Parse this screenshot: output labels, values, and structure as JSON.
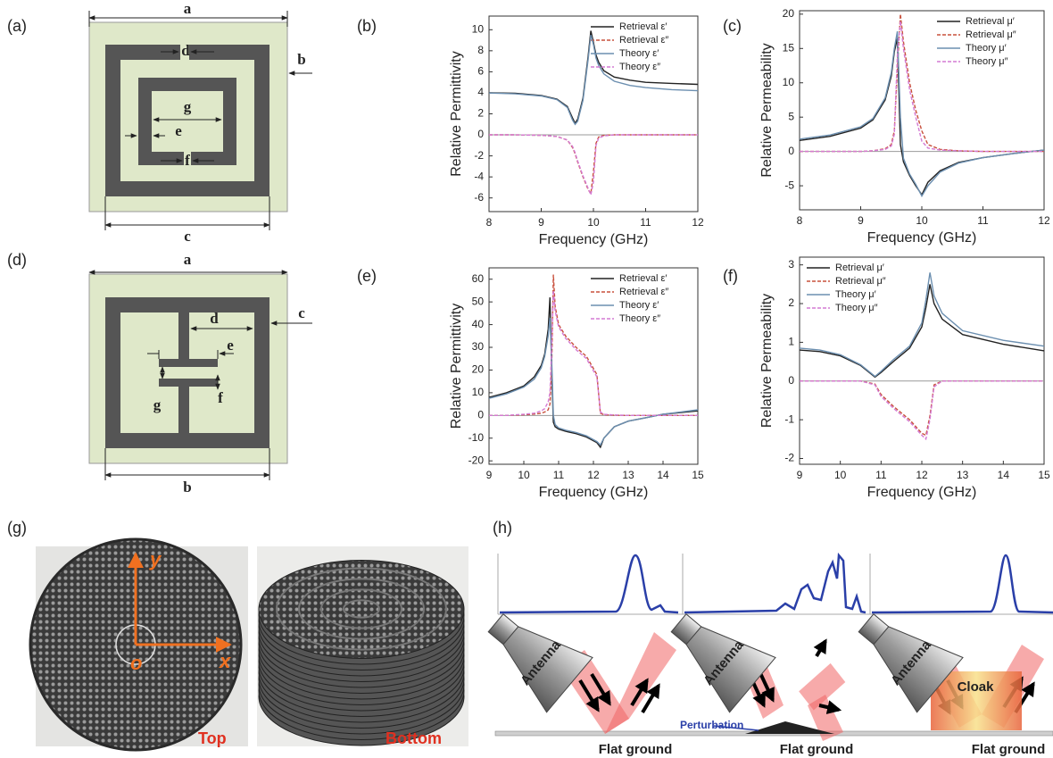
{
  "panel_labels": [
    "(a)",
    "(b)",
    "(c)",
    "(d)",
    "(e)",
    "(f)",
    "(g)",
    "(h)"
  ],
  "diagram_a": {
    "labels": [
      "a",
      "b",
      "c",
      "d",
      "e",
      "f",
      "g"
    ]
  },
  "diagram_d": {
    "labels": [
      "a",
      "b",
      "c",
      "d",
      "e",
      "f",
      "g"
    ]
  },
  "chart_data": [
    {
      "type": "line",
      "xlabel": "Frequency (GHz)",
      "ylabel": "Relative Permittivity",
      "legend": "upper right",
      "x": [
        8,
        8.5,
        9,
        9.3,
        9.5,
        9.6,
        9.65,
        9.7,
        9.8,
        9.9,
        9.95,
        10,
        10.05,
        10.1,
        10.2,
        10.4,
        10.7,
        11,
        11.5,
        12
      ],
      "xlim": [
        8,
        12
      ],
      "xticks": [
        8,
        9,
        10,
        11,
        12
      ],
      "ylim": [
        -7.3,
        11.3
      ],
      "yticks": [
        -6,
        -4,
        -2,
        0,
        2,
        4,
        6,
        8,
        10
      ],
      "series": [
        {
          "name": "Retrieval ε′",
          "color": "#222222",
          "dash": false,
          "values": [
            4.0,
            3.95,
            3.75,
            3.4,
            2.7,
            1.6,
            1.1,
            1.5,
            3.5,
            7.5,
            9.9,
            8.8,
            7.6,
            6.9,
            6.1,
            5.5,
            5.2,
            5.0,
            4.9,
            4.8
          ]
        },
        {
          "name": "Retrieval ε″",
          "color": "#c8503c",
          "dash": true,
          "values": [
            0,
            0,
            -0.05,
            -0.15,
            -0.5,
            -1.2,
            -1.8,
            -2.6,
            -4.0,
            -5.2,
            -5.6,
            -3.5,
            -0.8,
            -0.2,
            -0.05,
            0,
            0,
            0,
            0,
            0
          ]
        },
        {
          "name": "Theory ε′",
          "color": "#6c8fb0",
          "dash": false,
          "values": [
            3.98,
            3.9,
            3.7,
            3.35,
            2.6,
            1.4,
            1.0,
            1.3,
            3.3,
            7.2,
            9.5,
            8.6,
            7.3,
            6.6,
            5.8,
            5.1,
            4.7,
            4.5,
            4.3,
            4.2
          ]
        },
        {
          "name": "Theory ε″",
          "color": "#d47ad4",
          "dash": true,
          "values": [
            0,
            0,
            -0.05,
            -0.15,
            -0.5,
            -1.1,
            -1.7,
            -2.5,
            -3.9,
            -5.1,
            -5.7,
            -4.5,
            -1.0,
            -0.3,
            -0.1,
            0,
            0,
            0,
            0,
            0
          ]
        }
      ]
    },
    {
      "type": "line",
      "xlabel": "Frequency (GHz)",
      "ylabel": "Relative Permeability",
      "legend": "upper right",
      "x": [
        8,
        8.5,
        9,
        9.2,
        9.4,
        9.5,
        9.55,
        9.6,
        9.65,
        9.7,
        9.8,
        9.9,
        10,
        10.1,
        10.3,
        10.6,
        11,
        11.5,
        12
      ],
      "xlim": [
        8,
        12
      ],
      "xticks": [
        8,
        9,
        10,
        11,
        12
      ],
      "ylim": [
        -8.5,
        20.5
      ],
      "yticks": [
        -5,
        0,
        5,
        10,
        15,
        20
      ],
      "series": [
        {
          "name": "Retrieval μ′",
          "color": "#222222",
          "dash": false,
          "values": [
            1.6,
            2.2,
            3.4,
            4.6,
            7.5,
            11,
            14.5,
            16.5,
            1,
            -1.5,
            -3.5,
            -5,
            -6.3,
            -4.5,
            -2.8,
            -1.6,
            -0.9,
            -0.3,
            0.2
          ]
        },
        {
          "name": "Retrieval μ″",
          "color": "#c8503c",
          "dash": true,
          "values": [
            0,
            0,
            0,
            0.1,
            0.4,
            1,
            3,
            12,
            20,
            16,
            10,
            6,
            3,
            1,
            0.3,
            0.1,
            0,
            0,
            0
          ]
        },
        {
          "name": "Theory μ′",
          "color": "#6c8fb0",
          "dash": false,
          "values": [
            1.8,
            2.4,
            3.6,
            4.8,
            7.8,
            11.5,
            15,
            17.5,
            5,
            -1,
            -3.3,
            -4.8,
            -6.5,
            -5,
            -3,
            -1.7,
            -0.9,
            -0.3,
            0.2
          ]
        },
        {
          "name": "Theory μ″",
          "color": "#d47ad4",
          "dash": true,
          "values": [
            0,
            0,
            0,
            0.1,
            0.3,
            0.8,
            2.5,
            14,
            19,
            15,
            9,
            5,
            1.5,
            0.5,
            0.2,
            0.1,
            0,
            0,
            0
          ]
        }
      ]
    },
    {
      "type": "line",
      "xlabel": "Frequency (GHz)",
      "ylabel": "Relative Permittivity",
      "legend": "upper right",
      "x": [
        9,
        9.5,
        10,
        10.3,
        10.5,
        10.6,
        10.7,
        10.75,
        10.8,
        10.85,
        10.9,
        11,
        11.2,
        11.5,
        11.8,
        12.1,
        12.2,
        12.3,
        12.6,
        13,
        13.5,
        14,
        15
      ],
      "xlim": [
        9,
        15
      ],
      "xticks": [
        9,
        10,
        11,
        12,
        13,
        14,
        15
      ],
      "ylim": [
        -21.5,
        65
      ],
      "yticks": [
        -20,
        -10,
        0,
        10,
        20,
        30,
        40,
        50,
        60
      ],
      "series": [
        {
          "name": "Retrieval ε′",
          "color": "#222222",
          "dash": false,
          "values": [
            8,
            10,
            13,
            17,
            22,
            27,
            38,
            52,
            20,
            -3,
            -5,
            -6,
            -7,
            -8,
            -9.5,
            -12,
            -14,
            -10,
            -5,
            -2.5,
            -1,
            0.5,
            2
          ]
        },
        {
          "name": "Retrieval ε″",
          "color": "#c8503c",
          "dash": true,
          "values": [
            0,
            0,
            0.3,
            0.6,
            1,
            1.5,
            2.5,
            5,
            20,
            62,
            48,
            40,
            35,
            30,
            26,
            18,
            1,
            0.3,
            0.1,
            0,
            0,
            0,
            0
          ]
        },
        {
          "name": "Theory ε′",
          "color": "#6c8fb0",
          "dash": false,
          "values": [
            7.5,
            9.5,
            12.5,
            16,
            21,
            26,
            35,
            43,
            25,
            0,
            -4,
            -5.5,
            -6.5,
            -7.5,
            -9,
            -11.5,
            -13,
            -10,
            -5,
            -2.5,
            -1,
            0.5,
            2.5
          ]
        },
        {
          "name": "Theory ε″",
          "color": "#d47ad4",
          "dash": true,
          "values": [
            0,
            0,
            0.5,
            1,
            2,
            3,
            6,
            10,
            30,
            55,
            46,
            39,
            34,
            29,
            25,
            17,
            1.5,
            0.5,
            0.2,
            0,
            0,
            0,
            0
          ]
        }
      ]
    },
    {
      "type": "line",
      "xlabel": "Frequency (GHz)",
      "ylabel": "Relative Permeability",
      "legend": "upper left",
      "x": [
        9,
        9.5,
        10,
        10.5,
        10.85,
        11,
        11.3,
        11.7,
        12,
        12.1,
        12.2,
        12.3,
        12.5,
        13,
        14,
        15
      ],
      "xlim": [
        9,
        15
      ],
      "xticks": [
        9,
        10,
        11,
        12,
        13,
        14,
        15
      ],
      "ylim": [
        -2.15,
        3.2
      ],
      "yticks": [
        -2,
        -1,
        0,
        1,
        2,
        3
      ],
      "series": [
        {
          "name": "Retrieval μ′",
          "color": "#222222",
          "dash": false,
          "values": [
            0.8,
            0.76,
            0.65,
            0.4,
            0.1,
            0.22,
            0.5,
            0.85,
            1.4,
            1.9,
            2.5,
            2.0,
            1.6,
            1.2,
            0.95,
            0.78
          ]
        },
        {
          "name": "Retrieval μ″",
          "color": "#c8503c",
          "dash": true,
          "values": [
            0,
            0,
            0,
            0,
            -0.08,
            -0.35,
            -0.65,
            -1.0,
            -1.35,
            -1.4,
            -0.9,
            -0.1,
            0,
            0,
            0,
            0
          ]
        },
        {
          "name": "Theory μ′",
          "color": "#6c8fb0",
          "dash": false,
          "values": [
            0.85,
            0.8,
            0.68,
            0.42,
            0.12,
            0.25,
            0.55,
            0.9,
            1.5,
            2.1,
            2.8,
            2.2,
            1.75,
            1.3,
            1.05,
            0.9
          ]
        },
        {
          "name": "Theory μ″",
          "color": "#d47ad4",
          "dash": true,
          "values": [
            0,
            0,
            0,
            0,
            -0.1,
            -0.4,
            -0.7,
            -1.05,
            -1.4,
            -1.5,
            -1.0,
            -0.15,
            0,
            0,
            0,
            0
          ]
        }
      ]
    }
  ],
  "photos": {
    "axis_labels": [
      "y",
      "o",
      "x"
    ],
    "captions": [
      "Top",
      "Bottom"
    ]
  },
  "schematic": {
    "antennas": [
      "Antenna",
      "Antenna",
      "Antenna"
    ],
    "perturbation": "Perturbation",
    "cloak": "Cloak",
    "grounds": [
      "Flat ground",
      "Flat ground",
      "Flat ground"
    ]
  }
}
